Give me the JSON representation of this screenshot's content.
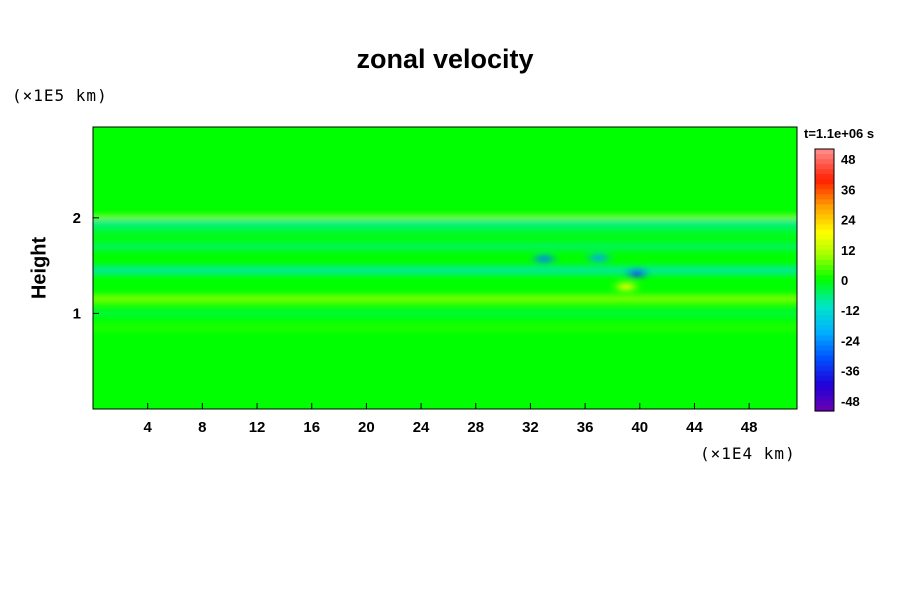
{
  "chart_data": {
    "type": "heatmap",
    "title": "zonal velocity",
    "xlabel": "",
    "ylabel": "Height",
    "x_unit_label": "(×1E4 km)",
    "y_unit_label": "(×1E5 km)",
    "xlim": [
      0,
      51.5
    ],
    "ylim": [
      0,
      2.95
    ],
    "x_ticks": [
      4,
      8,
      12,
      16,
      20,
      24,
      28,
      32,
      36,
      40,
      44,
      48
    ],
    "y_ticks": [
      1,
      2
    ],
    "colorbar": {
      "title": "t=1.1e+06 s",
      "ticks": [
        48,
        36,
        24,
        12,
        0,
        -12,
        -24,
        -36,
        -48
      ],
      "min": -52,
      "max": 52
    },
    "bands": [
      {
        "y_center": 1.98,
        "value": 11
      },
      {
        "y_center": 1.95,
        "value": -8
      },
      {
        "y_center": 1.85,
        "value": -3
      },
      {
        "y_center": 1.7,
        "value": -5
      },
      {
        "y_center": 1.45,
        "value": -9
      },
      {
        "y_center": 1.15,
        "value": 8
      },
      {
        "y_center": 1.0,
        "value": -3
      },
      {
        "y_center": 0.85,
        "value": 2
      }
    ],
    "features": [
      {
        "x": 33,
        "y": 1.57,
        "value": -26
      },
      {
        "x": 37,
        "y": 1.58,
        "value": -22
      },
      {
        "x": 39.8,
        "y": 1.42,
        "value": -34
      },
      {
        "x": 39,
        "y": 1.28,
        "value": 18
      }
    ]
  }
}
